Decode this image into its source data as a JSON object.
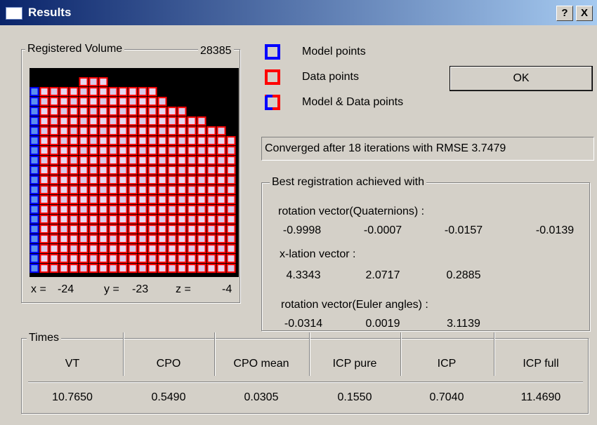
{
  "window": {
    "title": "Results",
    "help_button": "?",
    "close_button": "X"
  },
  "volume": {
    "title": "Registered Volume",
    "count": "28385",
    "coords": [
      {
        "label": "x =",
        "value": "-24"
      },
      {
        "label": "y =",
        "value": "-23"
      },
      {
        "label": "z =",
        "value": "-4"
      }
    ]
  },
  "legend": [
    "Model points",
    "Data points",
    "Model & Data points"
  ],
  "ok_button": "OK",
  "status": "Converged after 18 iterations with RMSE 3.7479",
  "registration": {
    "title": "Best registration achieved with",
    "quaternion": {
      "label": "rotation vector(Quaternions) :",
      "values": [
        "-0.9998",
        "-0.0007",
        "-0.0157",
        "-0.0139"
      ]
    },
    "translation": {
      "label": "x-lation vector :",
      "values": [
        "4.3343",
        "2.0717",
        "0.2885"
      ]
    },
    "euler": {
      "label": "rotation vector(Euler angles) :",
      "values": [
        "-0.0314",
        "0.0019",
        "3.1139"
      ]
    }
  },
  "times": {
    "title": "Times",
    "columns": [
      "VT",
      "CPO",
      "CPO mean",
      "ICP pure",
      "ICP",
      "ICP full"
    ],
    "values": [
      "10.7650",
      "0.5490",
      "0.0305",
      "0.1550",
      "0.7040",
      "11.4690"
    ]
  }
}
